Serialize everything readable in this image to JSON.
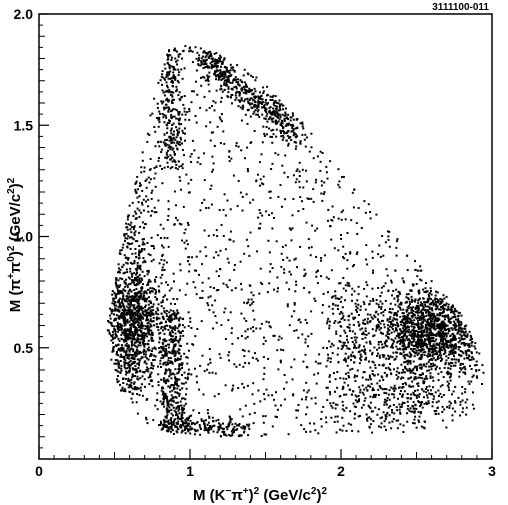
{
  "figure_id": "3111100-011",
  "chart_data": {
    "type": "scatter",
    "title": "",
    "xlabel": "M (K−π+)2 (GeV/c2)2",
    "ylabel": "M (π+π0)2 (GeV/c2)2",
    "xlim": [
      0,
      3
    ],
    "ylim": [
      0,
      2.0
    ],
    "x_ticks": [
      0,
      1,
      2,
      3
    ],
    "x_tick_labels": [
      "0",
      "1",
      "2",
      "3"
    ],
    "y_ticks": [
      0.5,
      1.0,
      1.5,
      2.0
    ],
    "y_tick_labels": [
      "0.5",
      "1.0",
      "1.5",
      "2.0"
    ],
    "grid": false,
    "legend": "none",
    "marker_color": "#000000",
    "dalitz_boundary": [
      [
        0.45,
        0.6
      ],
      [
        0.48,
        0.4
      ],
      [
        0.58,
        0.25
      ],
      [
        0.72,
        0.15
      ],
      [
        0.9,
        0.11
      ],
      [
        1.2,
        0.1
      ],
      [
        1.6,
        0.1
      ],
      [
        2.0,
        0.11
      ],
      [
        2.4,
        0.12
      ],
      [
        2.7,
        0.14
      ],
      [
        2.95,
        0.25
      ],
      [
        2.97,
        0.35
      ],
      [
        2.94,
        0.45
      ],
      [
        2.8,
        0.65
      ],
      [
        2.55,
        0.85
      ],
      [
        2.3,
        1.05
      ],
      [
        2.0,
        1.3
      ],
      [
        1.7,
        1.55
      ],
      [
        1.45,
        1.72
      ],
      [
        1.2,
        1.82
      ],
      [
        1.0,
        1.86
      ],
      [
        0.85,
        1.84
      ],
      [
        0.8,
        1.75
      ],
      [
        0.72,
        1.5
      ],
      [
        0.62,
        1.2
      ],
      [
        0.52,
        0.9
      ]
    ],
    "density_bands": [
      {
        "description": "vertical band",
        "x": [
          0.45,
          0.8
        ],
        "y": [
          0.3,
          0.9
        ]
      },
      {
        "description": "horizontal band",
        "x": [
          2.2,
          2.95
        ],
        "y": [
          0.4,
          0.8
        ]
      },
      {
        "description": "diagonal band",
        "x": [
          0.9,
          1.7
        ],
        "y": [
          0.15,
          1.86
        ]
      }
    ]
  }
}
